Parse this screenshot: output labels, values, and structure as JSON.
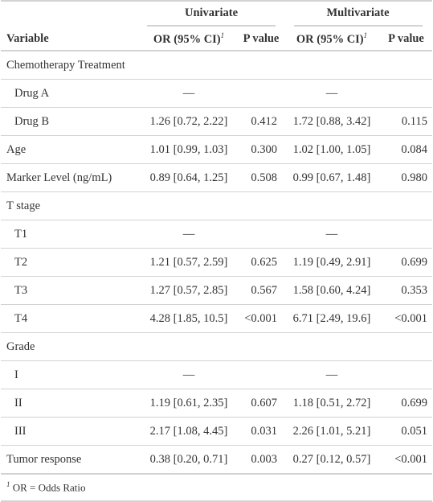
{
  "spanners": {
    "univariate": "Univariate",
    "multivariate": "Multivariate"
  },
  "columns": {
    "variable": "Variable",
    "or_ci": "OR (95% CI)",
    "or_ci_footnote_mark": "1",
    "p_value": "P value"
  },
  "rows": [
    {
      "label": "Chemotherapy Treatment",
      "indent": false,
      "u_or": "",
      "u_p": "",
      "m_or": "",
      "m_p": ""
    },
    {
      "label": "Drug A",
      "indent": true,
      "u_or": "—",
      "u_p": "",
      "m_or": "—",
      "m_p": ""
    },
    {
      "label": "Drug B",
      "indent": true,
      "u_or": "1.26 [0.72, 2.22]",
      "u_p": "0.412",
      "m_or": "1.72 [0.88, 3.42]",
      "m_p": "0.115"
    },
    {
      "label": "Age",
      "indent": false,
      "u_or": "1.01 [0.99, 1.03]",
      "u_p": "0.300",
      "m_or": "1.02 [1.00, 1.05]",
      "m_p": "0.084"
    },
    {
      "label": "Marker Level (ng/mL)",
      "indent": false,
      "u_or": "0.89 [0.64, 1.25]",
      "u_p": "0.508",
      "m_or": "0.99 [0.67, 1.48]",
      "m_p": "0.980"
    },
    {
      "label": "T stage",
      "indent": false,
      "u_or": "",
      "u_p": "",
      "m_or": "",
      "m_p": ""
    },
    {
      "label": "T1",
      "indent": true,
      "u_or": "—",
      "u_p": "",
      "m_or": "—",
      "m_p": ""
    },
    {
      "label": "T2",
      "indent": true,
      "u_or": "1.21 [0.57, 2.59]",
      "u_p": "0.625",
      "m_or": "1.19 [0.49, 2.91]",
      "m_p": "0.699"
    },
    {
      "label": "T3",
      "indent": true,
      "u_or": "1.27 [0.57, 2.85]",
      "u_p": "0.567",
      "m_or": "1.58 [0.60, 4.24]",
      "m_p": "0.353"
    },
    {
      "label": "T4",
      "indent": true,
      "u_or": "4.28 [1.85, 10.5]",
      "u_p": "<0.001",
      "m_or": "6.71 [2.49, 19.6]",
      "m_p": "<0.001"
    },
    {
      "label": "Grade",
      "indent": false,
      "u_or": "",
      "u_p": "",
      "m_or": "",
      "m_p": ""
    },
    {
      "label": "I",
      "indent": true,
      "u_or": "—",
      "u_p": "",
      "m_or": "—",
      "m_p": ""
    },
    {
      "label": "II",
      "indent": true,
      "u_or": "1.19 [0.61, 2.35]",
      "u_p": "0.607",
      "m_or": "1.18 [0.51, 2.72]",
      "m_p": "0.699"
    },
    {
      "label": "III",
      "indent": true,
      "u_or": "2.17 [1.08, 4.45]",
      "u_p": "0.031",
      "m_or": "2.26 [1.01, 5.21]",
      "m_p": "0.051"
    },
    {
      "label": "Tumor response",
      "indent": false,
      "u_or": "0.38 [0.20, 0.71]",
      "u_p": "0.003",
      "m_or": "0.27 [0.12, 0.57]",
      "m_p": "<0.001"
    }
  ],
  "footnote": {
    "mark": "1",
    "text": "OR = Odds Ratio"
  }
}
